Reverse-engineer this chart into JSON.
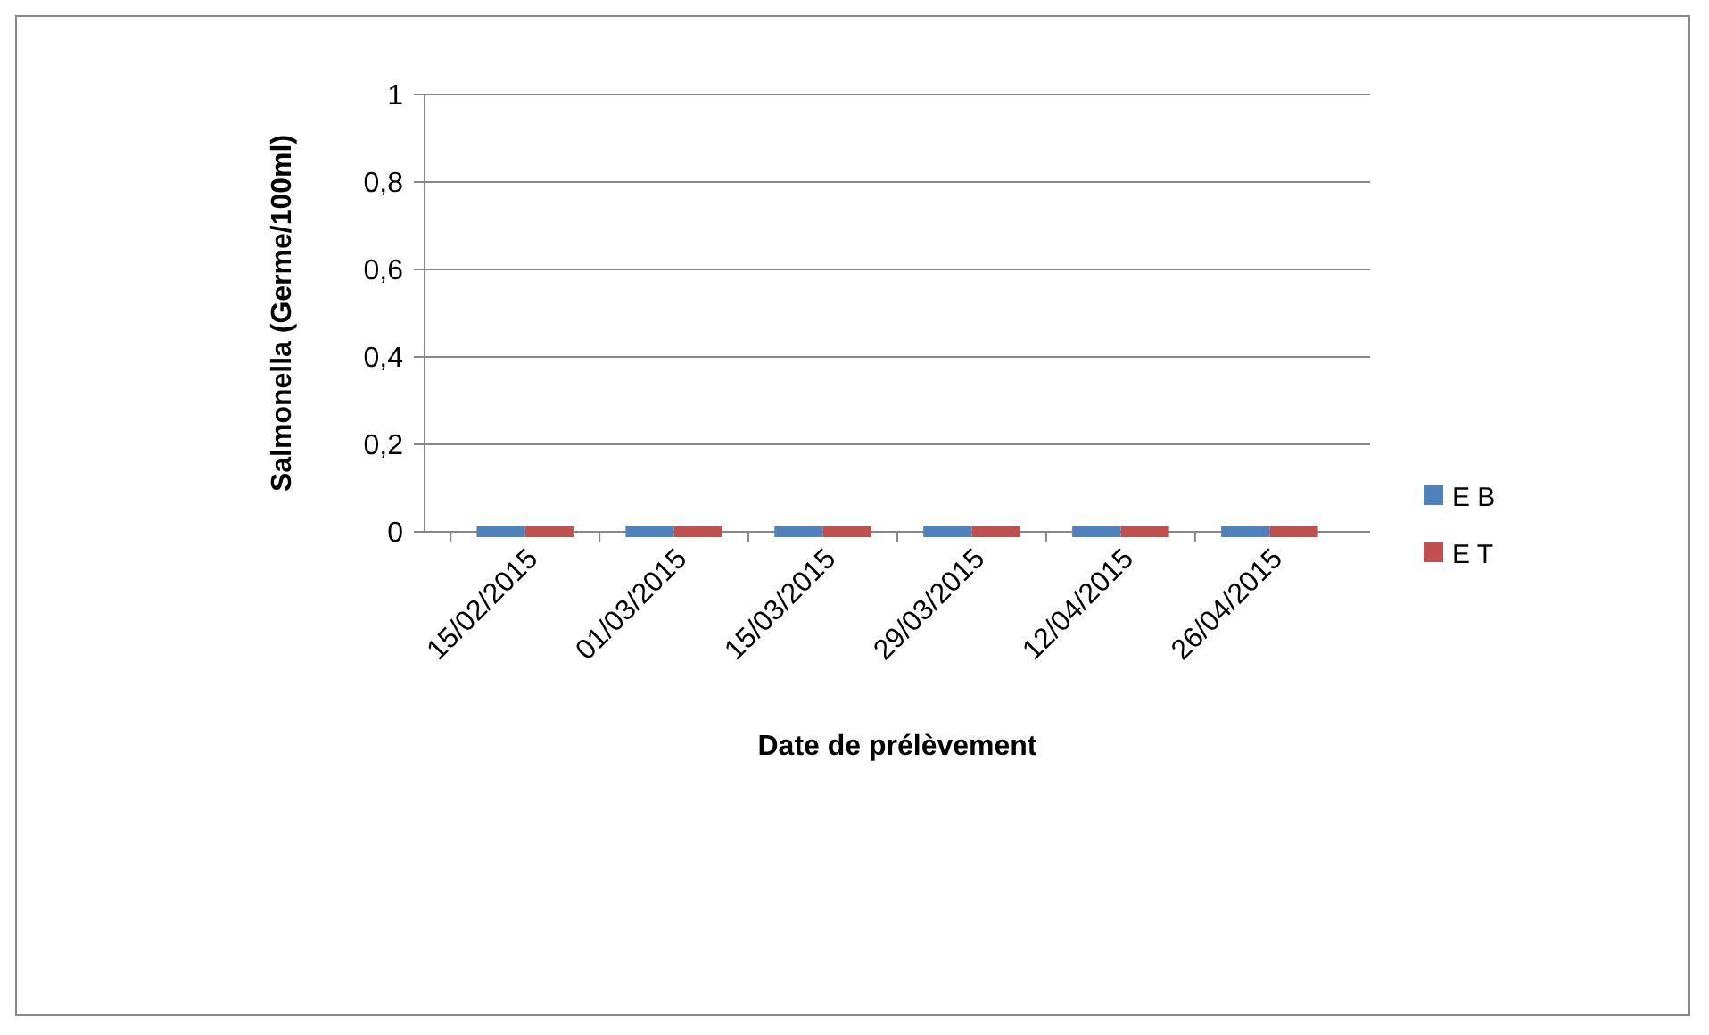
{
  "chart_data": {
    "type": "bar",
    "xlabel": "Date de prélèvement",
    "ylabel": "Salmonella (Germe/100ml)",
    "categories": [
      "15/02/2015",
      "01/03/2015",
      "15/03/2015",
      "29/03/2015",
      "12/04/2015",
      "26/04/2015"
    ],
    "series": [
      {
        "name": "E B",
        "color": "#4f81bd",
        "values": [
          0,
          0,
          0,
          0,
          0,
          0
        ]
      },
      {
        "name": "E T",
        "color": "#c0504d",
        "values": [
          0,
          0,
          0,
          0,
          0,
          0
        ]
      }
    ],
    "ylim": [
      0,
      1
    ],
    "yticks": [
      0,
      {
        "value": 0.2,
        "label": "0,2"
      },
      {
        "value": 0.4,
        "label": "0,4"
      },
      {
        "value": 0.6,
        "label": "0,6"
      },
      {
        "value": 0.8,
        "label": "0,8"
      },
      1
    ],
    "grid": "y",
    "legend": "right"
  }
}
